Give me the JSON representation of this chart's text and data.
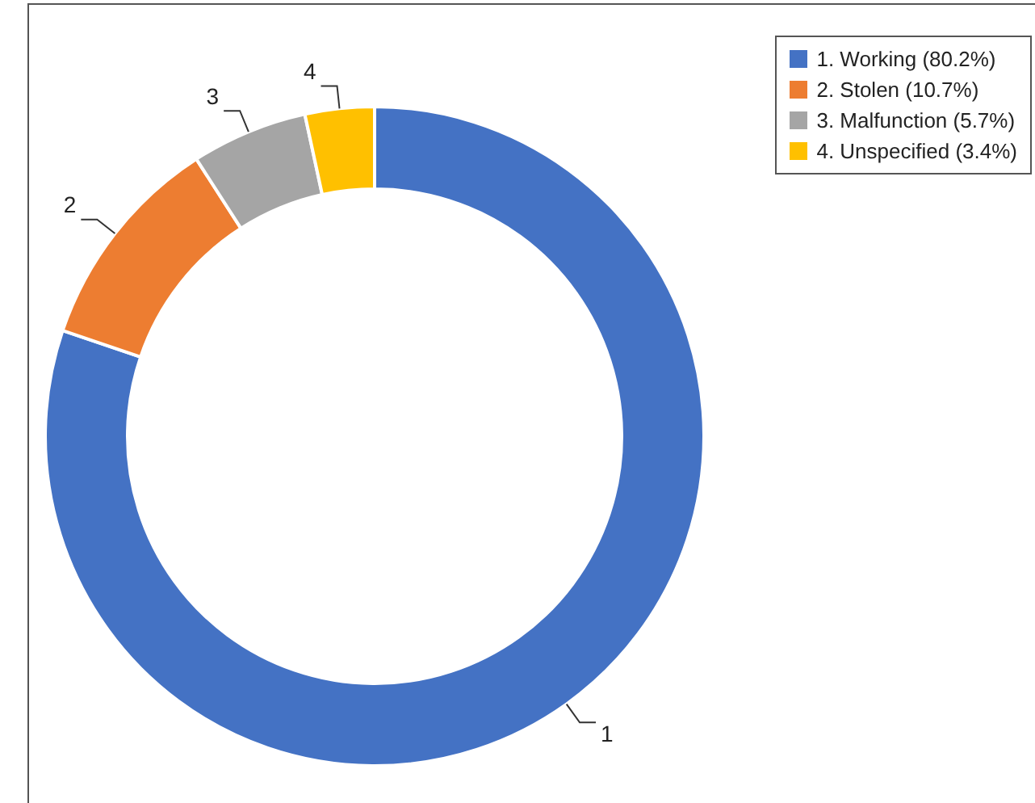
{
  "chart_data": {
    "type": "donut",
    "categories": [
      "1. Working (80.2%)",
      "2. Stolen (10.7%)",
      "3. Malfunction (5.7%)",
      "4. Unspecified (3.4%)"
    ],
    "values": [
      80.2,
      10.7,
      5.7,
      3.4
    ],
    "colors": [
      "#4472c4",
      "#ed7d31",
      "#a5a5a5",
      "#ffc000"
    ],
    "annotations": [
      {
        "text": "1",
        "x": "1. Working (80.2%)"
      },
      {
        "text": "2",
        "x": "2. Stolen (10.7%)"
      },
      {
        "text": "3",
        "x": "3. Malfunction (5.7%)"
      },
      {
        "text": "4",
        "x": "4. Unspecified (3.4%)"
      }
    ],
    "legend": "top right"
  }
}
